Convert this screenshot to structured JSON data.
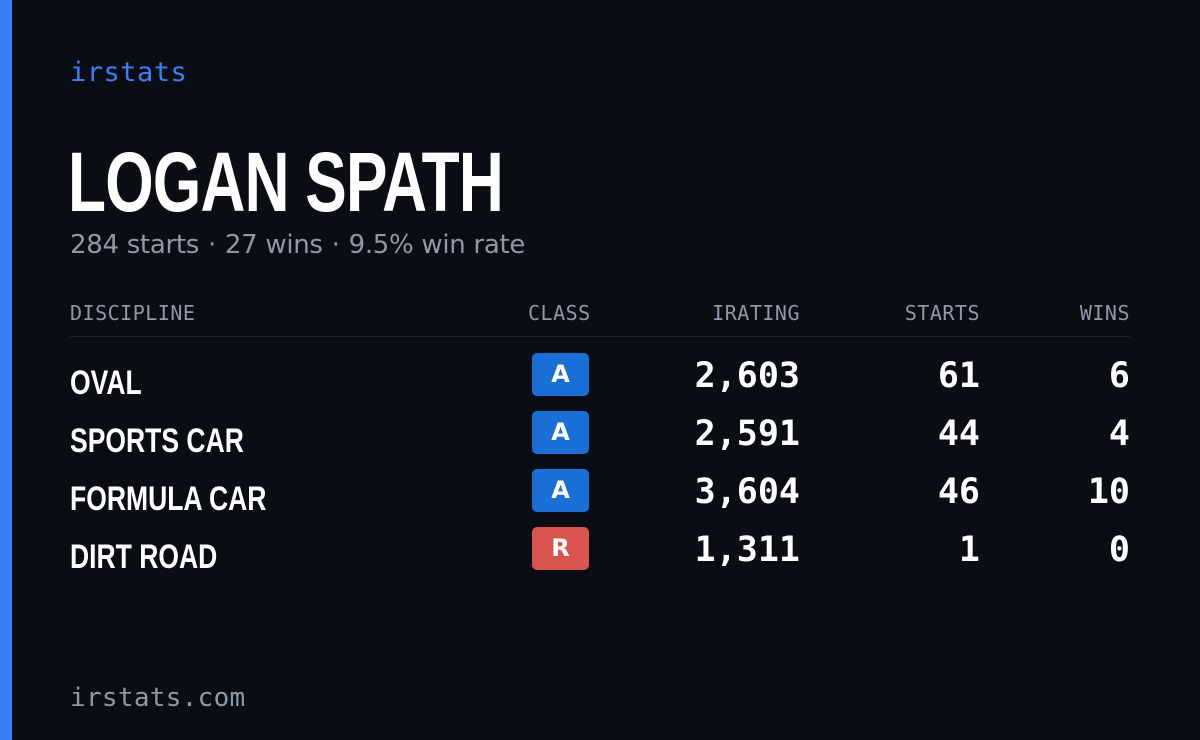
{
  "theme": {
    "accent": "#3b7ff5",
    "class_colors": {
      "A": "#1a6fd6",
      "R": "#d9534f"
    }
  },
  "brand": {
    "name": "irstats"
  },
  "driver": {
    "name": "LOGAN SPATH",
    "starts": "284 starts",
    "wins": "27 wins",
    "win_rate": "9.5% win rate",
    "separator": "·"
  },
  "table": {
    "headers": {
      "discipline": "DISCIPLINE",
      "class": "CLASS",
      "irating": "IRATING",
      "starts": "STARTS",
      "wins": "WINS"
    },
    "rows": [
      {
        "discipline": "OVAL",
        "class": "A",
        "irating": "2,603",
        "starts": "61",
        "wins": "6"
      },
      {
        "discipline": "SPORTS CAR",
        "class": "A",
        "irating": "2,591",
        "starts": "44",
        "wins": "4"
      },
      {
        "discipline": "FORMULA CAR",
        "class": "A",
        "irating": "3,604",
        "starts": "46",
        "wins": "10"
      },
      {
        "discipline": "DIRT ROAD",
        "class": "R",
        "irating": "1,311",
        "starts": "1",
        "wins": "0"
      }
    ]
  },
  "footer": {
    "domain": "irstats.com"
  }
}
